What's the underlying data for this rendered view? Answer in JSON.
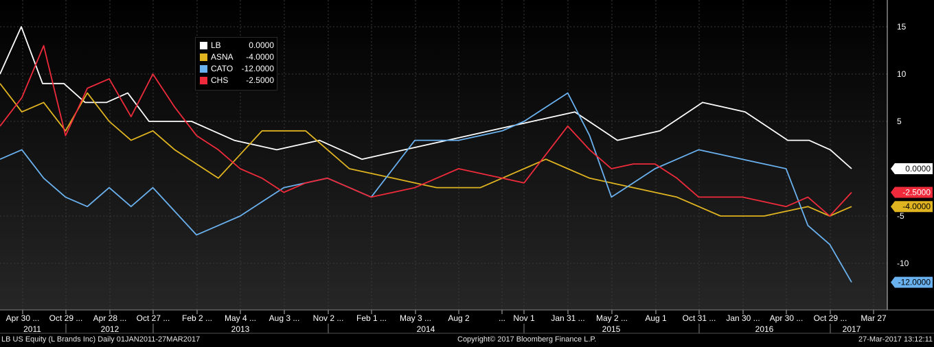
{
  "chart_data": {
    "type": "line",
    "x_labels_top": [
      "Apr 30 ...",
      "Oct 29 ...",
      "Apr 28 ...",
      "Oct 27 ...",
      "Feb 2 ...",
      "May 4 ...",
      "Aug 3 ...",
      "Nov 2 ...",
      "Feb 1 ...",
      "May 3 ...",
      "Aug 2",
      "...",
      "Nov 1",
      "Jan 31 ...",
      "May 2 ...",
      "Aug 1",
      "Oct 31 ...",
      "Jan 30 ...",
      "Apr 30 ...",
      "Oct 29 ...",
      "Mar 27"
    ],
    "x_labels_years": [
      "2011",
      "2012",
      "2013",
      "2014",
      "2015",
      "2016",
      "2017"
    ],
    "y_ticks": [
      15,
      10,
      5,
      -5,
      -10
    ],
    "ylim": [
      -14.5,
      17.5
    ],
    "grid": true,
    "legend_position": "top-left",
    "series": [
      {
        "name": "LB",
        "color": "#ffffff",
        "last_value": "0.0000",
        "last_label": "0.0000",
        "label_bg": "#ffffff",
        "label_fg": "#000000",
        "values": [
          10,
          15,
          9,
          9,
          7,
          7,
          8,
          5,
          5,
          5,
          4,
          3,
          2.5,
          2,
          2.5,
          3,
          2,
          1,
          1.5,
          2,
          2.5,
          3,
          3.5,
          4,
          4.5,
          5,
          5.5,
          6,
          4.5,
          3,
          3.5,
          4,
          5.5,
          7,
          6.5,
          6,
          4.5,
          3,
          3,
          2,
          0
        ]
      },
      {
        "name": "ASNA",
        "color": "#e0b421",
        "last_value": "-4.0000",
        "last_label": "-4.0000",
        "label_bg": "#e0b421",
        "label_fg": "#000000",
        "values": [
          9,
          6,
          7,
          4,
          8,
          5,
          3,
          4,
          2,
          0.5,
          -1,
          1.5,
          4,
          4,
          4,
          2,
          0,
          -0.5,
          -1,
          -1.5,
          -2,
          -2,
          -2,
          -1,
          0,
          1,
          0,
          -1,
          -1.5,
          -2,
          -2.5,
          -3,
          -4,
          -5,
          -5,
          -5,
          -4.5,
          -4,
          -5,
          -4
        ]
      },
      {
        "name": "CATO",
        "color": "#6ab1ef",
        "last_value": "-12.0000",
        "last_label": "-12.0000",
        "label_bg": "#6ab1ef",
        "label_fg": "#000000",
        "values": [
          1,
          2,
          -1,
          -3,
          -4,
          -2,
          -4,
          -2,
          -4.5,
          -7,
          -6,
          -5,
          -3.5,
          -2,
          -1.5,
          -1,
          -2,
          -3,
          0,
          3,
          3,
          3,
          3.5,
          4,
          5,
          6.5,
          8,
          3.5,
          -3,
          -1.5,
          0,
          1,
          2,
          1.5,
          1,
          0.5,
          0,
          -6,
          -8,
          -12
        ]
      },
      {
        "name": "CHS",
        "color": "#ef2b3b",
        "last_value": "-2.5000",
        "last_label": "-2.5000",
        "label_bg": "#ef2b3b",
        "label_fg": "#ffffff",
        "values": [
          4.5,
          7.5,
          13,
          3.5,
          8.5,
          9.5,
          5.5,
          10,
          6.5,
          3.5,
          2,
          0,
          -1,
          -2.5,
          -1.5,
          -1,
          -2,
          -3,
          -2.5,
          -2,
          -1,
          0,
          -0.5,
          -1,
          -1.5,
          1.5,
          4.5,
          2,
          0,
          0.5,
          0.5,
          -1,
          -3,
          -3,
          -3,
          -3.5,
          -4,
          -3,
          -5,
          -2.5
        ]
      }
    ]
  },
  "footer": {
    "left": "LB US Equity (L Brands Inc)  Daily 01JAN2011-27MAR2017",
    "center": "Copyright© 2017 Bloomberg Finance L.P.",
    "right": "27-Mar-2017 13:12:11"
  },
  "colors": {
    "background": "#000000",
    "grid": "#3a3a3a",
    "axis_text": "#ffffff"
  }
}
